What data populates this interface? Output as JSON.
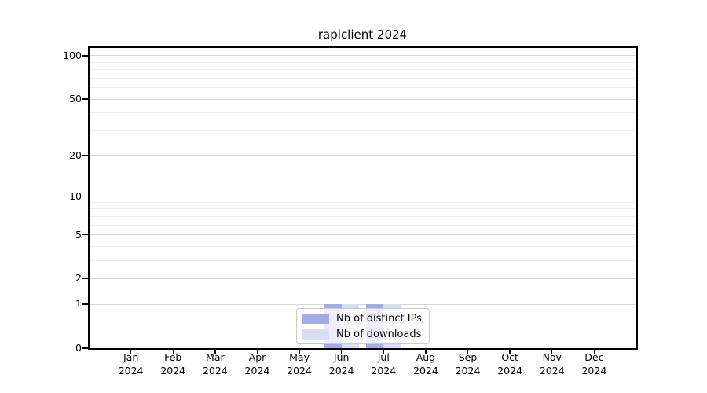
{
  "chart_data": {
    "type": "bar",
    "title": "rapiclient 2024",
    "categories": [
      "Jan",
      "Feb",
      "Mar",
      "Apr",
      "May",
      "Jun",
      "Jul",
      "Aug",
      "Sep",
      "Oct",
      "Nov",
      "Dec"
    ],
    "x_tick_year": "2024",
    "series": [
      {
        "name": "Nb of distinct IPs",
        "color": "#a5a9e7",
        "values": [
          0,
          0,
          0,
          0,
          0,
          1,
          1,
          0,
          0,
          0,
          0,
          0
        ]
      },
      {
        "name": "Nb of downloads",
        "color": "#dadcf6",
        "values": [
          0,
          0,
          0,
          0,
          0,
          1,
          1,
          0,
          0,
          0,
          0,
          0
        ]
      }
    ],
    "y_axis": {
      "scale": "log10(value+1)",
      "tick_labels": [
        "0",
        "1",
        "2",
        "5",
        "10",
        "20",
        "50",
        "100"
      ],
      "tick_values": [
        0,
        1,
        2,
        5,
        10,
        20,
        50,
        100
      ],
      "minor_grid_values": [
        3,
        4,
        6,
        7,
        8,
        9,
        30,
        40,
        60,
        70,
        80,
        90
      ],
      "max_labeled": 100
    },
    "legend": {
      "position": "bottom-center",
      "entries": [
        "Nb of distinct IPs",
        "Nb of downloads"
      ]
    },
    "grid": true,
    "colors": {
      "background": "#ffffff",
      "major_grid": "#d5d5d5",
      "minor_grid": "#ededed",
      "axis": "#000000",
      "text": "#000000"
    }
  }
}
